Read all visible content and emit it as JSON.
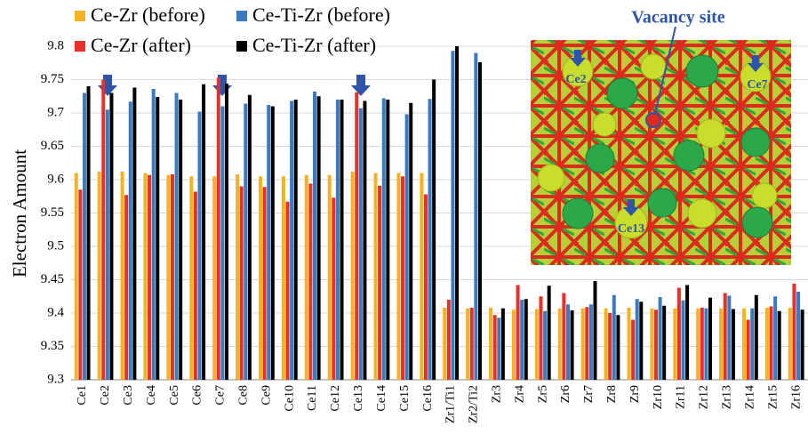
{
  "chart_data": {
    "type": "bar",
    "y_label": "Electron Amount",
    "categories": [
      "Ce1",
      "Ce2",
      "Ce3",
      "Ce4",
      "Ce5",
      "Ce6",
      "Ce7",
      "Ce8",
      "Ce9",
      "Ce10",
      "Ce11",
      "Ce12",
      "Ce13",
      "Ce14",
      "Ce15",
      "Ce16",
      "Zr1/Ti1",
      "Zr2/Ti2",
      "Zr3",
      "Zr4",
      "Zr5",
      "Zr6",
      "Zr7",
      "Zr8",
      "Zr9",
      "Zr10",
      "Zr11",
      "Zr12",
      "Zr13",
      "Zr14",
      "Zr15",
      "Zr16"
    ],
    "series": [
      {
        "name": "Ce-Zr (before)",
        "color": "#f5b323",
        "values": [
          9.61,
          9.612,
          9.612,
          9.61,
          9.607,
          9.605,
          9.605,
          9.608,
          9.605,
          9.605,
          9.607,
          9.607,
          9.612,
          9.61,
          9.61,
          9.61,
          9.408,
          9.407,
          9.408,
          9.405,
          9.406,
          9.407,
          9.407,
          9.407,
          9.408,
          9.407,
          9.407,
          9.407,
          9.407,
          9.407,
          9.408,
          9.408
        ]
      },
      {
        "name": "Ce-Zr (after)",
        "color": "#e8302a",
        "values": [
          9.585,
          9.75,
          9.577,
          9.607,
          9.608,
          9.582,
          9.753,
          9.59,
          9.589,
          9.567,
          9.594,
          9.573,
          9.731,
          9.591,
          9.605,
          9.578,
          9.42,
          9.408,
          9.397,
          9.442,
          9.425,
          9.43,
          9.409,
          9.4,
          9.39,
          9.405,
          9.438,
          9.408,
          9.43,
          9.39,
          9.41,
          9.444
        ]
      },
      {
        "name": "Ce-Ti-Zr (before)",
        "color": "#3a7ac0",
        "values": [
          9.73,
          9.705,
          9.717,
          9.736,
          9.73,
          9.702,
          9.71,
          9.714,
          9.712,
          9.718,
          9.732,
          9.72,
          9.707,
          9.722,
          9.698,
          9.721,
          9.793,
          9.79,
          9.393,
          9.42,
          9.403,
          9.413,
          9.413,
          9.427,
          9.421,
          9.424,
          9.419,
          9.407,
          9.426,
          9.407,
          9.425,
          9.432
        ]
      },
      {
        "name": "Ce-Ti-Zr (after)",
        "color": "#000000",
        "values": [
          9.74,
          9.73,
          9.738,
          9.724,
          9.72,
          9.743,
          9.744,
          9.727,
          9.71,
          9.72,
          9.725,
          9.72,
          9.718,
          9.72,
          9.715,
          9.75,
          9.8,
          9.776,
          9.407,
          9.421,
          9.441,
          9.404,
          9.448,
          9.397,
          9.417,
          9.411,
          9.442,
          9.423,
          9.406,
          9.427,
          9.403,
          9.405
        ]
      }
    ],
    "ylim": [
      9.3,
      9.8
    ],
    "yticks": [
      9.3,
      9.35,
      9.4,
      9.45,
      9.5,
      9.55,
      9.6,
      9.65,
      9.7,
      9.75,
      9.8
    ],
    "grid": true
  },
  "inset": {
    "title": "Vacancy site",
    "labels": [
      "Ce2",
      "Ce7",
      "Ce13"
    ]
  }
}
